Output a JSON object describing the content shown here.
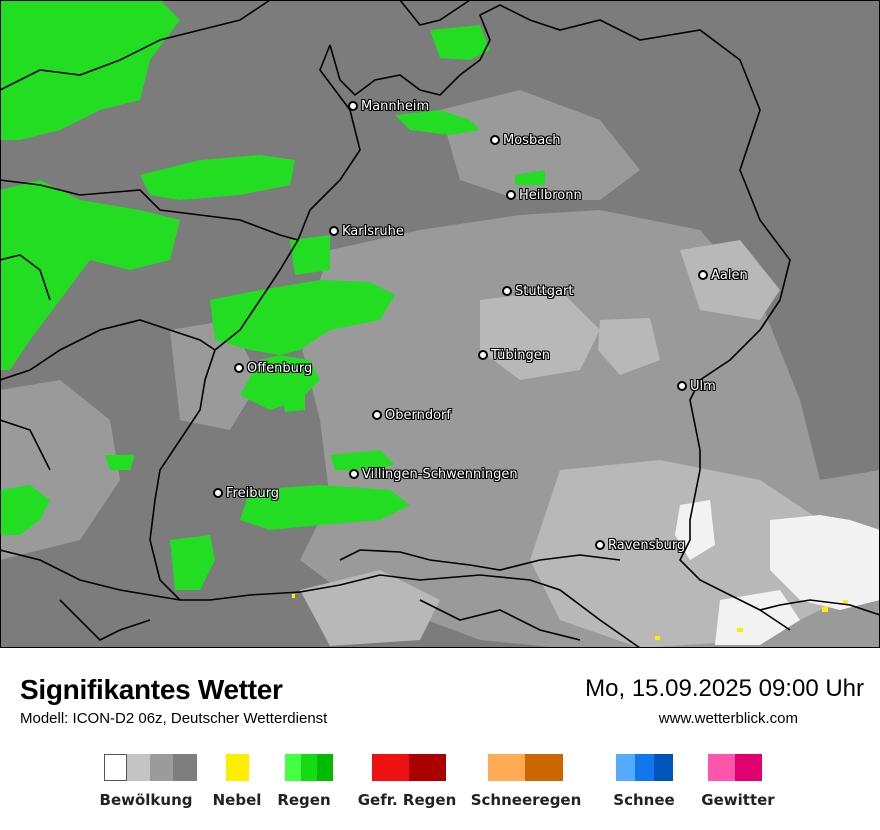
{
  "map": {
    "cities": [
      {
        "name": "Mannheim"
      },
      {
        "name": "Mosbach"
      },
      {
        "name": "Heilbronn"
      },
      {
        "name": "Karlsruhe"
      },
      {
        "name": "Aalen"
      },
      {
        "name": "Stuttgart"
      },
      {
        "name": "Tübingen"
      },
      {
        "name": "Offenburg"
      },
      {
        "name": "Ulm"
      },
      {
        "name": "Oberndorf"
      },
      {
        "name": "Villingen-Schwenningen"
      },
      {
        "name": "Freiburg"
      },
      {
        "name": "Ravensburg"
      }
    ]
  },
  "header": {
    "title": "Signifikantes Wetter",
    "subtitle": "Modell: ICON-D2 06z, Deutscher Wetterdienst",
    "datetime": "Mo, 15.09.2025 09:00 Uhr",
    "url": "www.wetterblick.com"
  },
  "legend": [
    {
      "label": "Bewölkung",
      "colors": [
        "#ffffff",
        "#c4c4c4",
        "#9b9b9b",
        "#7e7e7e"
      ]
    },
    {
      "label": "Nebel",
      "colors": [
        "#ffee00"
      ]
    },
    {
      "label": "Regen",
      "colors": [
        "#44ff44",
        "#11dd11",
        "#00bb00"
      ]
    },
    {
      "label": "Gefr. Regen",
      "colors": [
        "#ee1111",
        "#aa0000"
      ]
    },
    {
      "label": "Schneeregen",
      "colors": [
        "#ffaa55",
        "#cc6600"
      ]
    },
    {
      "label": "Schnee",
      "colors": [
        "#55aaff",
        "#1177ee",
        "#0055bb"
      ]
    },
    {
      "label": "Gewitter",
      "colors": [
        "#ff55aa",
        "#e0006f"
      ]
    }
  ]
}
